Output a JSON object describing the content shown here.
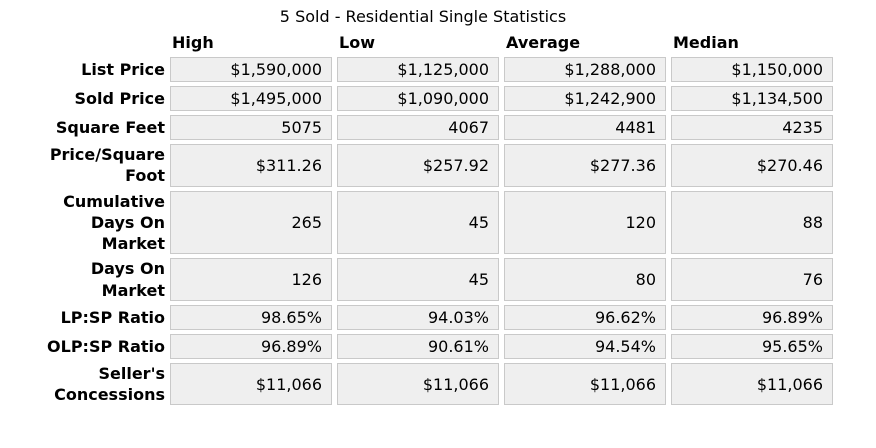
{
  "title": "5 Sold - Residential Single Statistics",
  "colors": {
    "cell_bg": "#efefef",
    "cell_border": "#c9c9c9",
    "text": "#000000",
    "page_bg": "#ffffff"
  },
  "chart_data": {
    "type": "table",
    "title": "5 Sold - Residential Single Statistics",
    "columns": [
      "High",
      "Low",
      "Average",
      "Median"
    ],
    "rows": [
      {
        "label": "List Price",
        "values": [
          "$1,590,000",
          "$1,125,000",
          "$1,288,000",
          "$1,150,000"
        ]
      },
      {
        "label": "Sold Price",
        "values": [
          "$1,495,000",
          "$1,090,000",
          "$1,242,900",
          "$1,134,500"
        ]
      },
      {
        "label": "Square Feet",
        "values": [
          "5075",
          "4067",
          "4481",
          "4235"
        ]
      },
      {
        "label": "Price/Square Foot",
        "values": [
          "$311.26",
          "$257.92",
          "$277.36",
          "$270.46"
        ]
      },
      {
        "label": "Cumulative Days On Market",
        "values": [
          "265",
          "45",
          "120",
          "88"
        ]
      },
      {
        "label": "Days On Market",
        "values": [
          "126",
          "45",
          "80",
          "76"
        ]
      },
      {
        "label": "LP:SP Ratio",
        "values": [
          "98.65%",
          "94.03%",
          "96.62%",
          "96.89%"
        ]
      },
      {
        "label": "OLP:SP Ratio",
        "values": [
          "96.89%",
          "90.61%",
          "94.54%",
          "95.65%"
        ]
      },
      {
        "label": "Seller's Concessions",
        "values": [
          "$11,066",
          "$11,066",
          "$11,066",
          "$11,066"
        ]
      }
    ]
  }
}
